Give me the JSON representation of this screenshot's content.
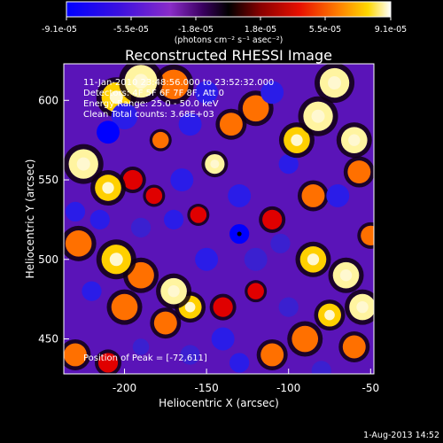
{
  "colorbar": {
    "tick_labels": [
      "-9.1e-05",
      "-5.5e-05",
      "-1.8e-05",
      "1.8e-05",
      "5.5e-05",
      "9.1e-05"
    ],
    "unit_label": "(photons cm⁻² s⁻¹ asec⁻²)"
  },
  "annotations": {
    "time_range": "11-Jan-2010 23:48:56.000 to 23:52:32.000",
    "detectors": "Detectors: 4F 5F 6F 7F 8F, Att 0",
    "energy": "Energy Range: 25.0 - 50.0 keV",
    "clean": "Clean    Total counts: 3.68E+03",
    "peak": "Position of Peak = [-72,611]"
  },
  "footer": {
    "timestamp": "1-Aug-2013 14:52"
  },
  "colors": {
    "colormap": [
      "#0000ff",
      "#5a14d8",
      "#9a30c0",
      "#20003a",
      "#000000",
      "#7a0000",
      "#e00000",
      "#ff7000",
      "#ffd000",
      "#ffffff"
    ]
  },
  "chart_data": {
    "type": "heatmap",
    "title": "Reconstructed RHESSI Image",
    "xlabel": "Heliocentric X (arcsec)",
    "ylabel": "Heliocentric Y (arcsec)",
    "xlim": [
      -237,
      -48
    ],
    "ylim": [
      428,
      623
    ],
    "x_ticks": [
      -200,
      -150,
      -100,
      -50
    ],
    "y_ticks": [
      450,
      500,
      550,
      600
    ],
    "x_tick_labels": [
      "-200",
      "-150",
      "-100",
      "-50"
    ],
    "y_tick_labels": [
      "450",
      "500",
      "550",
      "600"
    ],
    "value_range": [
      -9.1e-05,
      9.1e-05
    ],
    "peak_position": [
      -72,
      611
    ],
    "marker_position": [
      -130,
      516
    ],
    "blobs": [
      {
        "x": -190,
        "y": 612,
        "v": 0.9,
        "s": 10
      },
      {
        "x": -205,
        "y": 602,
        "v": 0.8,
        "s": 9
      },
      {
        "x": -170,
        "y": 610,
        "v": 0.7,
        "s": 9
      },
      {
        "x": -72,
        "y": 611,
        "v": 1.0,
        "s": 9
      },
      {
        "x": -82,
        "y": 590,
        "v": 0.9,
        "s": 9
      },
      {
        "x": -60,
        "y": 575,
        "v": 0.9,
        "s": 8
      },
      {
        "x": -95,
        "y": 575,
        "v": 0.8,
        "s": 8
      },
      {
        "x": -120,
        "y": 595,
        "v": 0.7,
        "s": 8
      },
      {
        "x": -135,
        "y": 585,
        "v": 0.6,
        "s": 7
      },
      {
        "x": -57,
        "y": 555,
        "v": 0.7,
        "s": 7
      },
      {
        "x": -85,
        "y": 540,
        "v": 0.6,
        "s": 7
      },
      {
        "x": -225,
        "y": 560,
        "v": 0.9,
        "s": 9
      },
      {
        "x": -210,
        "y": 545,
        "v": 0.8,
        "s": 8
      },
      {
        "x": -195,
        "y": 550,
        "v": 0.5,
        "s": 6
      },
      {
        "x": -182,
        "y": 540,
        "v": 0.4,
        "s": 5
      },
      {
        "x": -145,
        "y": 560,
        "v": 0.9,
        "s": 6
      },
      {
        "x": -178,
        "y": 575,
        "v": 0.7,
        "s": 5
      },
      {
        "x": -228,
        "y": 510,
        "v": 0.6,
        "s": 8
      },
      {
        "x": -205,
        "y": 500,
        "v": 0.8,
        "s": 9
      },
      {
        "x": -190,
        "y": 490,
        "v": 0.7,
        "s": 8
      },
      {
        "x": -170,
        "y": 480,
        "v": 0.9,
        "s": 8
      },
      {
        "x": -160,
        "y": 470,
        "v": 0.8,
        "s": 7
      },
      {
        "x": -200,
        "y": 470,
        "v": 0.7,
        "s": 8
      },
      {
        "x": -175,
        "y": 460,
        "v": 0.6,
        "s": 7
      },
      {
        "x": -85,
        "y": 500,
        "v": 0.8,
        "s": 8
      },
      {
        "x": -65,
        "y": 490,
        "v": 1.0,
        "s": 8
      },
      {
        "x": -55,
        "y": 470,
        "v": 0.9,
        "s": 8
      },
      {
        "x": -75,
        "y": 465,
        "v": 0.8,
        "s": 7
      },
      {
        "x": -90,
        "y": 450,
        "v": 0.7,
        "s": 8
      },
      {
        "x": -110,
        "y": 440,
        "v": 0.6,
        "s": 7
      },
      {
        "x": -60,
        "y": 445,
        "v": 0.7,
        "s": 7
      },
      {
        "x": -140,
        "y": 470,
        "v": 0.5,
        "s": 6
      },
      {
        "x": -120,
        "y": 480,
        "v": 0.5,
        "s": 5
      },
      {
        "x": -230,
        "y": 440,
        "v": 0.6,
        "s": 7
      },
      {
        "x": -210,
        "y": 435,
        "v": 0.5,
        "s": 6
      },
      {
        "x": -50,
        "y": 515,
        "v": 0.6,
        "s": 6
      },
      {
        "x": -110,
        "y": 525,
        "v": 0.4,
        "s": 6
      },
      {
        "x": -155,
        "y": 528,
        "v": 0.4,
        "s": 5
      },
      {
        "x": -200,
        "y": 590,
        "v": -0.8,
        "s": 8
      },
      {
        "x": -210,
        "y": 580,
        "v": -0.9,
        "s": 7
      },
      {
        "x": -160,
        "y": 585,
        "v": -0.8,
        "s": 7
      },
      {
        "x": -150,
        "y": 605,
        "v": -0.8,
        "s": 7
      },
      {
        "x": -110,
        "y": 605,
        "v": -0.7,
        "s": 7
      },
      {
        "x": -70,
        "y": 540,
        "v": -0.8,
        "s": 7
      },
      {
        "x": -100,
        "y": 560,
        "v": -0.6,
        "s": 6
      },
      {
        "x": -230,
        "y": 530,
        "v": -0.6,
        "s": 6
      },
      {
        "x": -215,
        "y": 525,
        "v": -0.7,
        "s": 6
      },
      {
        "x": -190,
        "y": 520,
        "v": -0.5,
        "s": 6
      },
      {
        "x": -170,
        "y": 525,
        "v": -0.6,
        "s": 6
      },
      {
        "x": -165,
        "y": 550,
        "v": -0.7,
        "s": 7
      },
      {
        "x": -130,
        "y": 540,
        "v": -0.6,
        "s": 7
      },
      {
        "x": -130,
        "y": 516,
        "v": -0.9,
        "s": 6
      },
      {
        "x": -120,
        "y": 500,
        "v": -0.5,
        "s": 7
      },
      {
        "x": -150,
        "y": 500,
        "v": -0.6,
        "s": 7
      },
      {
        "x": -105,
        "y": 510,
        "v": -0.5,
        "s": 6
      },
      {
        "x": -220,
        "y": 480,
        "v": -0.6,
        "s": 6
      },
      {
        "x": -140,
        "y": 450,
        "v": -0.7,
        "s": 7
      },
      {
        "x": -130,
        "y": 435,
        "v": -0.6,
        "s": 6
      },
      {
        "x": -160,
        "y": 440,
        "v": -0.5,
        "s": 6
      },
      {
        "x": -190,
        "y": 445,
        "v": -0.4,
        "s": 5
      },
      {
        "x": -100,
        "y": 470,
        "v": -0.5,
        "s": 6
      },
      {
        "x": -80,
        "y": 430,
        "v": -0.4,
        "s": 6
      }
    ]
  }
}
